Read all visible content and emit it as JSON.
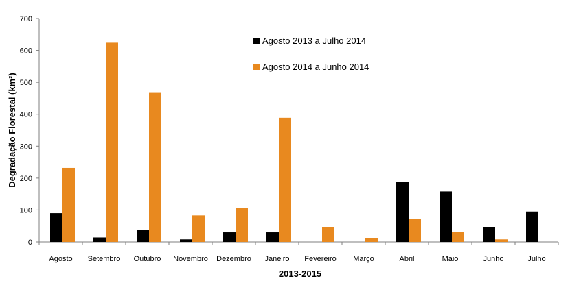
{
  "chart_data": {
    "type": "bar",
    "xlabel": "2013-2015",
    "ylabel": "Degradação Florestal (km²)",
    "ylim": [
      0,
      700
    ],
    "yticks": [
      0,
      100,
      200,
      300,
      400,
      500,
      600,
      700
    ],
    "grid": false,
    "legend_position": "top-center",
    "categories": [
      "Agosto",
      "Setembro",
      "Outubro",
      "Novembro",
      "Dezembro",
      "Janeiro",
      "Fevereiro",
      "Março",
      "Abril",
      "Maio",
      "Junho",
      "Julho"
    ],
    "series": [
      {
        "name": "Agosto 2013 a Julho 2014",
        "color": "#000000",
        "values": [
          90,
          14,
          38,
          8,
          30,
          30,
          0,
          0,
          188,
          158,
          47,
          95
        ]
      },
      {
        "name": "Agosto 2014 a Junho 2014",
        "color": "#e8891f",
        "values": [
          232,
          624,
          469,
          83,
          107,
          389,
          46,
          12,
          73,
          32,
          8,
          null
        ]
      }
    ]
  }
}
